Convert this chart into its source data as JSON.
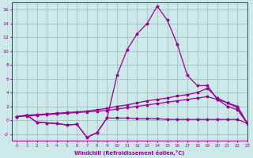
{
  "x": [
    0,
    1,
    2,
    3,
    4,
    5,
    6,
    7,
    8,
    9,
    10,
    11,
    12,
    13,
    14,
    15,
    16,
    17,
    18,
    19,
    20,
    21,
    22,
    23
  ],
  "line_spiky": [
    0.5,
    0.7,
    -0.3,
    -0.4,
    -0.5,
    -0.7,
    -0.6,
    -2.5,
    -1.8,
    0.3,
    0.3,
    0.3,
    0.2,
    0.2,
    0.2,
    0.1,
    0.1,
    0.1,
    0.1,
    0.1,
    0.1,
    0.1,
    0.1,
    -0.5
  ],
  "line_peaked": [
    0.5,
    0.7,
    -0.3,
    -0.4,
    -0.5,
    -0.7,
    -0.6,
    -2.5,
    -1.8,
    0.3,
    6.5,
    10.2,
    12.5,
    14.0,
    16.5,
    14.5,
    11.0,
    6.5,
    5.0,
    5.0,
    3.0,
    2.0,
    1.5,
    -0.5
  ],
  "line_upper": [
    0.5,
    0.7,
    0.8,
    0.9,
    1.0,
    1.1,
    1.2,
    1.3,
    1.5,
    1.7,
    2.0,
    2.2,
    2.5,
    2.8,
    3.0,
    3.2,
    3.5,
    3.7,
    4.0,
    4.6,
    3.2,
    2.5,
    2.0,
    -0.5
  ],
  "line_lower": [
    0.5,
    0.6,
    0.7,
    0.8,
    0.9,
    1.0,
    1.1,
    1.2,
    1.3,
    1.4,
    1.6,
    1.8,
    2.0,
    2.2,
    2.4,
    2.6,
    2.8,
    3.0,
    3.2,
    3.4,
    3.0,
    2.5,
    1.8,
    -0.5
  ],
  "color": "#990099",
  "bg_color": "#cce8e8",
  "grid_color": "#99bbbb",
  "xlabel": "Windchill (Refroidissement éolien,°C)",
  "ylim": [
    -3,
    17
  ],
  "xlim": [
    -0.5,
    23
  ],
  "yticks": [
    -2,
    0,
    2,
    4,
    6,
    8,
    10,
    12,
    14,
    16
  ],
  "xticks": [
    0,
    1,
    2,
    3,
    4,
    5,
    6,
    7,
    8,
    9,
    10,
    11,
    12,
    13,
    14,
    15,
    16,
    17,
    18,
    19,
    20,
    21,
    22,
    23
  ]
}
